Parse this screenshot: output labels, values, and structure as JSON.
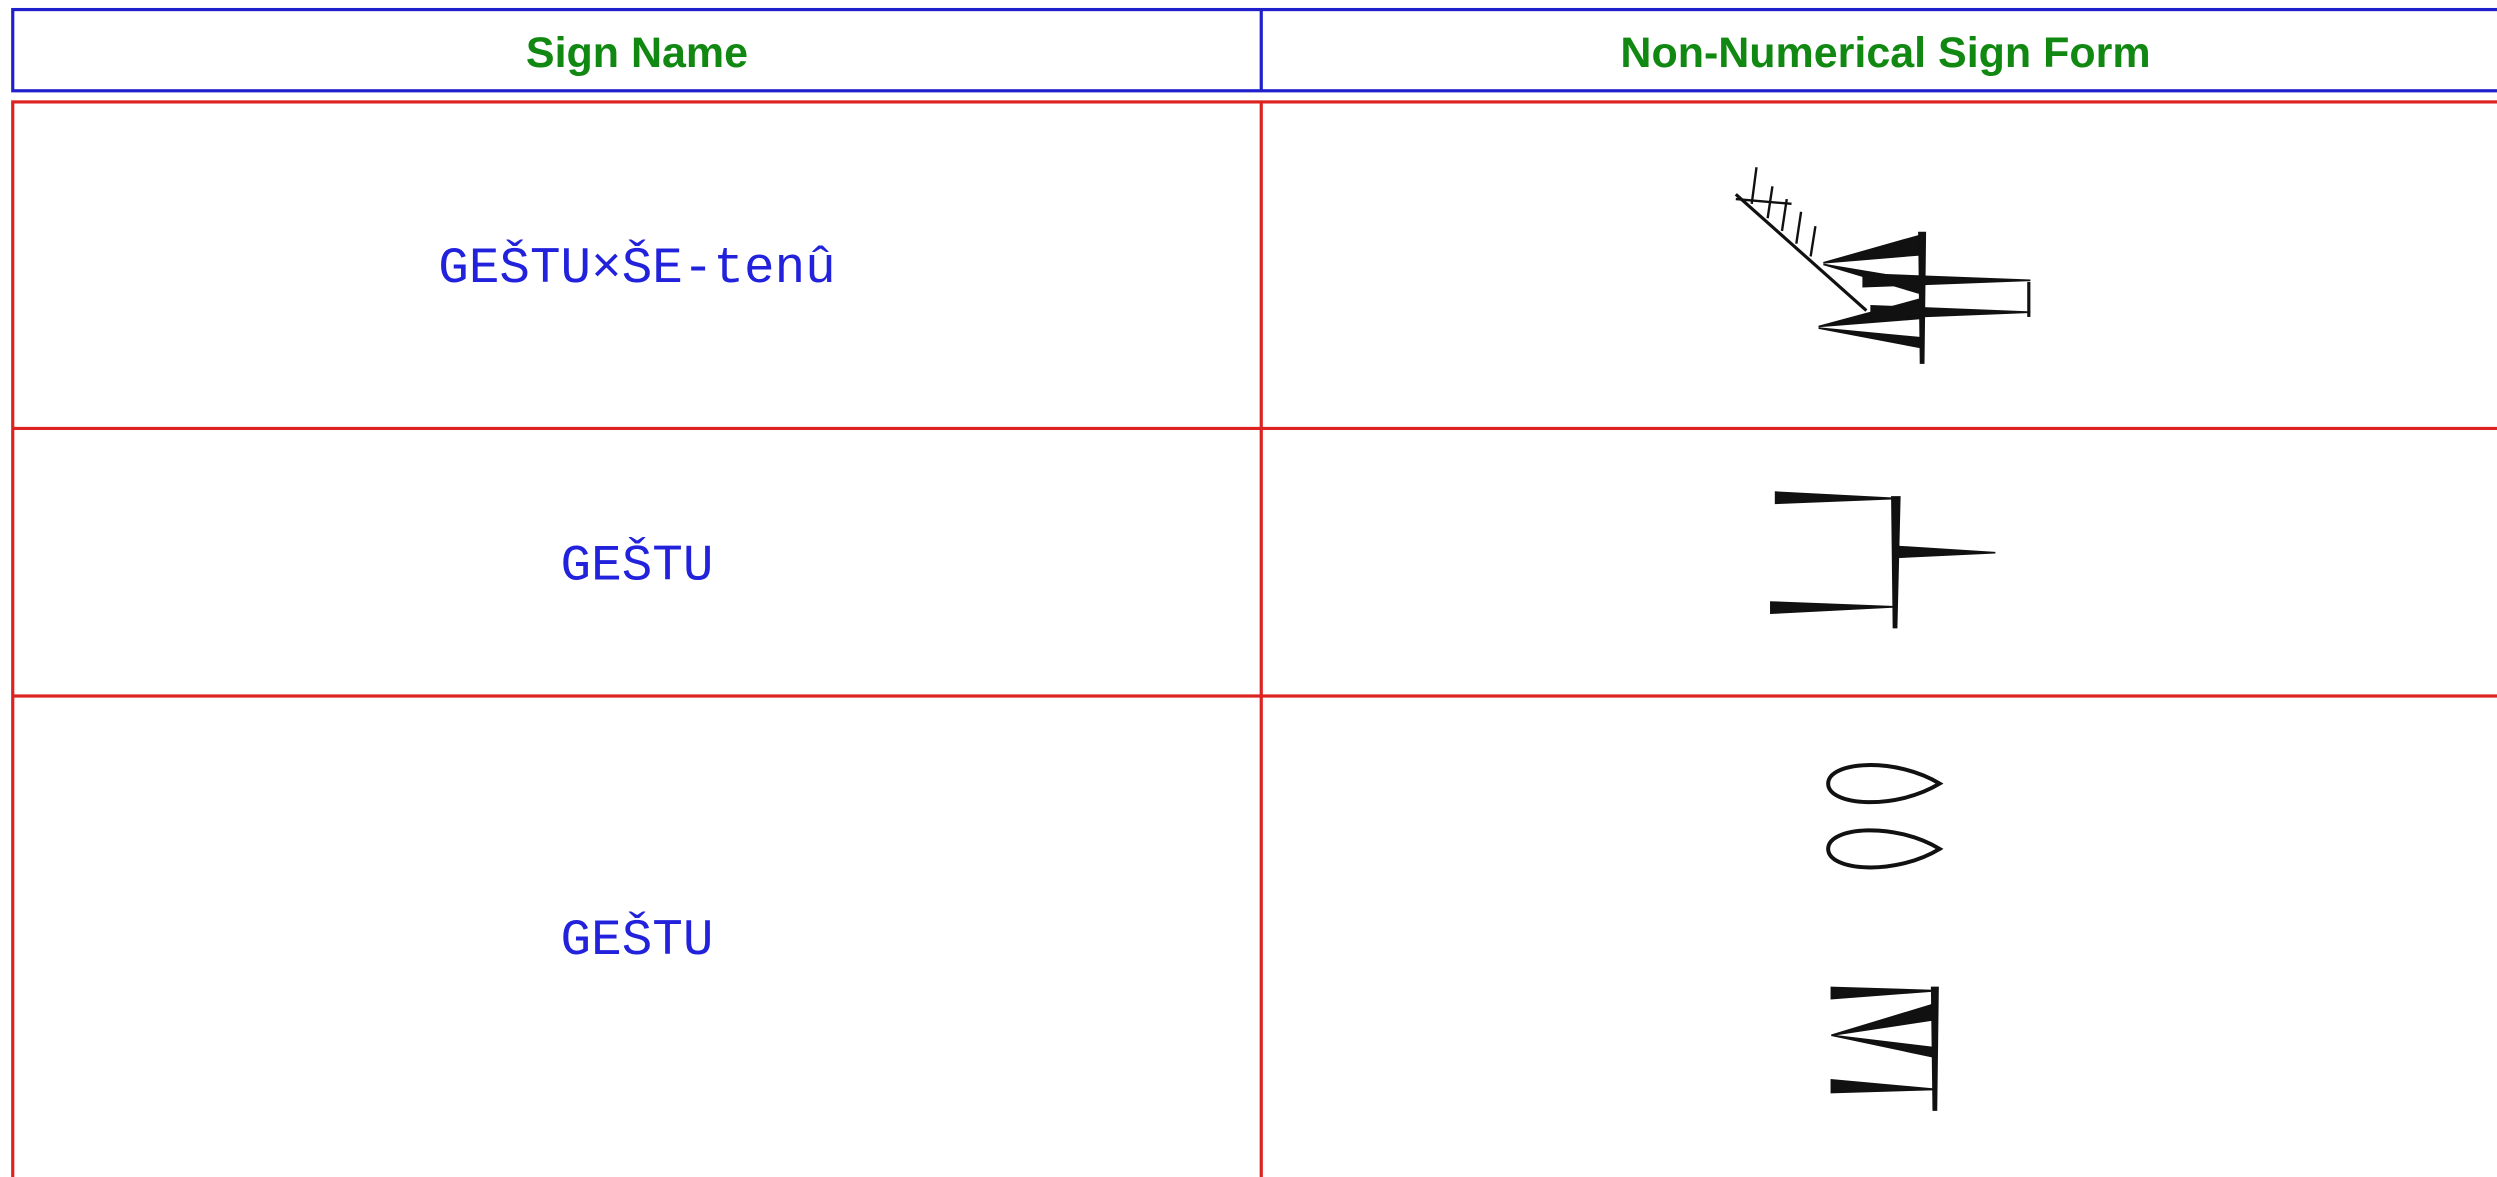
{
  "table": {
    "header": [
      "Sign Name",
      "Non-Numerical Sign Form"
    ],
    "rows": [
      [
        "GEŠTU×ŠE-tenû"
      ],
      [
        "GEŠTU"
      ],
      [
        "GEŠTU"
      ]
    ]
  }
}
